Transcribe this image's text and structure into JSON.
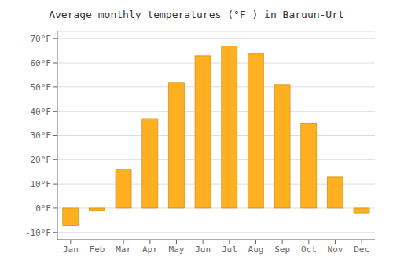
{
  "chart_data": {
    "type": "bar",
    "title": "Average monthly temperatures (°F ) in Baruun-Urt",
    "categories": [
      "Jan",
      "Feb",
      "Mar",
      "Apr",
      "May",
      "Jun",
      "Jul",
      "Aug",
      "Sep",
      "Oct",
      "Nov",
      "Dec"
    ],
    "values": [
      -7,
      -1,
      16,
      37,
      52,
      63,
      67,
      64,
      51,
      35,
      13,
      -2
    ],
    "color": "#FFB020",
    "ylim": [
      -13,
      73
    ],
    "yticks": [
      {
        "value": -10,
        "label": "-10°F"
      },
      {
        "value": 0,
        "label": "0°F"
      },
      {
        "value": 10,
        "label": "10°F"
      },
      {
        "value": 20,
        "label": "20°F"
      },
      {
        "value": 30,
        "label": "30°F"
      },
      {
        "value": 40,
        "label": "40°F"
      },
      {
        "value": 50,
        "label": "50°F"
      },
      {
        "value": 60,
        "label": "60°F"
      },
      {
        "value": 70,
        "label": "70°F"
      }
    ],
    "grid": true
  }
}
